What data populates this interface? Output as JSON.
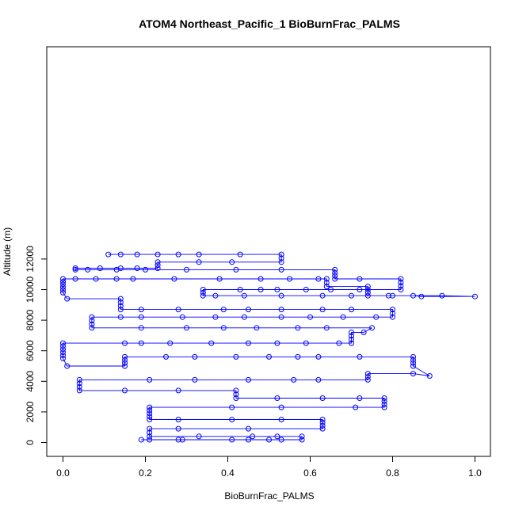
{
  "chart_data": {
    "type": "scatter",
    "title": "ATOM4 Northeast_Pacific_1 BioBurnFrac_PALMS",
    "xlabel": "BioBurnFrac_PALMS",
    "ylabel": "Altitude (m)",
    "xlim": [
      0.0,
      1.0
    ],
    "ylim": [
      0,
      12600
    ],
    "x_ticks": [
      0.0,
      0.2,
      0.4,
      0.6,
      0.8,
      1.0
    ],
    "x_tick_labels": [
      "0.0",
      "0.2",
      "0.4",
      "0.6",
      "0.8",
      "1.0"
    ],
    "y_ticks": [
      0,
      2000,
      4000,
      6000,
      8000,
      10000,
      12000
    ],
    "y_tick_labels": [
      "0",
      "2000",
      "4000",
      "6000",
      "8000",
      "10000",
      "12000"
    ],
    "grid": false,
    "legend": false,
    "marker": "open-circle",
    "connected": true,
    "color": "#0000ff",
    "series": [
      {
        "values": [
          [
            0.19,
            180
          ],
          [
            0.21,
            180
          ],
          [
            0.28,
            180
          ],
          [
            0.29,
            180
          ],
          [
            0.41,
            180
          ],
          [
            0.45,
            180
          ],
          [
            0.5,
            180
          ],
          [
            0.53,
            180
          ],
          [
            0.58,
            180
          ],
          [
            0.58,
            400
          ],
          [
            0.52,
            400
          ],
          [
            0.46,
            400
          ],
          [
            0.33,
            400
          ],
          [
            0.21,
            400
          ],
          [
            0.21,
            900
          ],
          [
            0.28,
            900
          ],
          [
            0.45,
            900
          ],
          [
            0.63,
            900
          ],
          [
            0.63,
            1500
          ],
          [
            0.53,
            1500
          ],
          [
            0.41,
            1500
          ],
          [
            0.28,
            1500
          ],
          [
            0.21,
            1500
          ],
          [
            0.21,
            2300
          ],
          [
            0.41,
            2300
          ],
          [
            0.53,
            2300
          ],
          [
            0.71,
            2300
          ],
          [
            0.78,
            2300
          ],
          [
            0.78,
            2900
          ],
          [
            0.72,
            2900
          ],
          [
            0.63,
            2900
          ],
          [
            0.52,
            2900
          ],
          [
            0.42,
            2900
          ],
          [
            0.42,
            3400
          ],
          [
            0.28,
            3400
          ],
          [
            0.15,
            3400
          ],
          [
            0.04,
            3400
          ],
          [
            0.04,
            4100
          ],
          [
            0.21,
            4100
          ],
          [
            0.32,
            4100
          ],
          [
            0.45,
            4100
          ],
          [
            0.56,
            4100
          ],
          [
            0.62,
            4100
          ],
          [
            0.74,
            4100
          ],
          [
            0.74,
            4500
          ],
          [
            0.85,
            4500
          ],
          [
            0.89,
            4350
          ],
          [
            0.85,
            5000
          ],
          [
            0.85,
            5600
          ],
          [
            0.72,
            5600
          ],
          [
            0.62,
            5600
          ],
          [
            0.57,
            5600
          ],
          [
            0.5,
            5600
          ],
          [
            0.42,
            5600
          ],
          [
            0.32,
            5600
          ],
          [
            0.25,
            5600
          ],
          [
            0.15,
            5600
          ],
          [
            0.15,
            5000
          ],
          [
            0.01,
            5000
          ],
          [
            0.0,
            5500
          ],
          [
            0.0,
            6500
          ],
          [
            0.15,
            6500
          ],
          [
            0.19,
            6500
          ],
          [
            0.26,
            6500
          ],
          [
            0.36,
            6500
          ],
          [
            0.45,
            6500
          ],
          [
            0.52,
            6500
          ],
          [
            0.59,
            6500
          ],
          [
            0.67,
            6500
          ],
          [
            0.7,
            6500
          ],
          [
            0.7,
            7200
          ],
          [
            0.73,
            7200
          ],
          [
            0.75,
            7500
          ],
          [
            0.64,
            7500
          ],
          [
            0.57,
            7500
          ],
          [
            0.47,
            7500
          ],
          [
            0.39,
            7500
          ],
          [
            0.3,
            7500
          ],
          [
            0.19,
            7500
          ],
          [
            0.07,
            7500
          ],
          [
            0.07,
            8200
          ],
          [
            0.14,
            8200
          ],
          [
            0.19,
            8200
          ],
          [
            0.29,
            8200
          ],
          [
            0.37,
            8200
          ],
          [
            0.44,
            8200
          ],
          [
            0.53,
            8200
          ],
          [
            0.6,
            8200
          ],
          [
            0.68,
            8200
          ],
          [
            0.76,
            8200
          ],
          [
            0.8,
            8200
          ],
          [
            0.8,
            8700
          ],
          [
            0.7,
            8700
          ],
          [
            0.63,
            8700
          ],
          [
            0.53,
            8700
          ],
          [
            0.45,
            8700
          ],
          [
            0.39,
            8700
          ],
          [
            0.28,
            8700
          ],
          [
            0.19,
            8700
          ],
          [
            0.14,
            8700
          ],
          [
            0.14,
            9400
          ],
          [
            0.01,
            9400
          ],
          [
            0.0,
            9800
          ],
          [
            0.0,
            10700
          ],
          [
            0.03,
            10700
          ],
          [
            0.08,
            10700
          ],
          [
            0.13,
            10700
          ],
          [
            0.17,
            10700
          ],
          [
            0.27,
            10700
          ],
          [
            0.38,
            10700
          ],
          [
            0.48,
            10700
          ],
          [
            0.55,
            10700
          ],
          [
            0.62,
            10700
          ],
          [
            0.64,
            10700
          ],
          [
            0.64,
            10200
          ],
          [
            0.74,
            10200
          ],
          [
            0.74,
            9600
          ],
          [
            0.8,
            9600
          ],
          [
            0.85,
            9600
          ],
          [
            0.87,
            9550
          ],
          [
            1.0,
            9550
          ],
          [
            0.92,
            9600
          ],
          [
            0.79,
            9600
          ],
          [
            0.7,
            9600
          ],
          [
            0.63,
            9600
          ],
          [
            0.53,
            9600
          ],
          [
            0.44,
            9600
          ],
          [
            0.37,
            9600
          ],
          [
            0.34,
            9600
          ],
          [
            0.34,
            10000
          ],
          [
            0.43,
            10000
          ],
          [
            0.48,
            10000
          ],
          [
            0.52,
            10000
          ],
          [
            0.59,
            10000
          ],
          [
            0.65,
            10000
          ],
          [
            0.72,
            10000
          ],
          [
            0.82,
            10000
          ],
          [
            0.82,
            10700
          ],
          [
            0.72,
            10700
          ],
          [
            0.66,
            10700
          ],
          [
            0.66,
            11300
          ],
          [
            0.53,
            11300
          ],
          [
            0.42,
            11300
          ],
          [
            0.3,
            11300
          ],
          [
            0.2,
            11300
          ],
          [
            0.13,
            11300
          ],
          [
            0.06,
            11300
          ],
          [
            0.03,
            11300
          ],
          [
            0.03,
            11400
          ],
          [
            0.09,
            11400
          ],
          [
            0.14,
            11400
          ],
          [
            0.18,
            11400
          ],
          [
            0.23,
            11400
          ],
          [
            0.23,
            11800
          ],
          [
            0.33,
            11800
          ],
          [
            0.41,
            11800
          ],
          [
            0.53,
            11800
          ],
          [
            0.53,
            12300
          ],
          [
            0.43,
            12300
          ],
          [
            0.33,
            12300
          ],
          [
            0.28,
            12300
          ],
          [
            0.23,
            12300
          ],
          [
            0.18,
            12300
          ],
          [
            0.14,
            12300
          ],
          [
            0.11,
            12300
          ]
        ]
      }
    ]
  }
}
